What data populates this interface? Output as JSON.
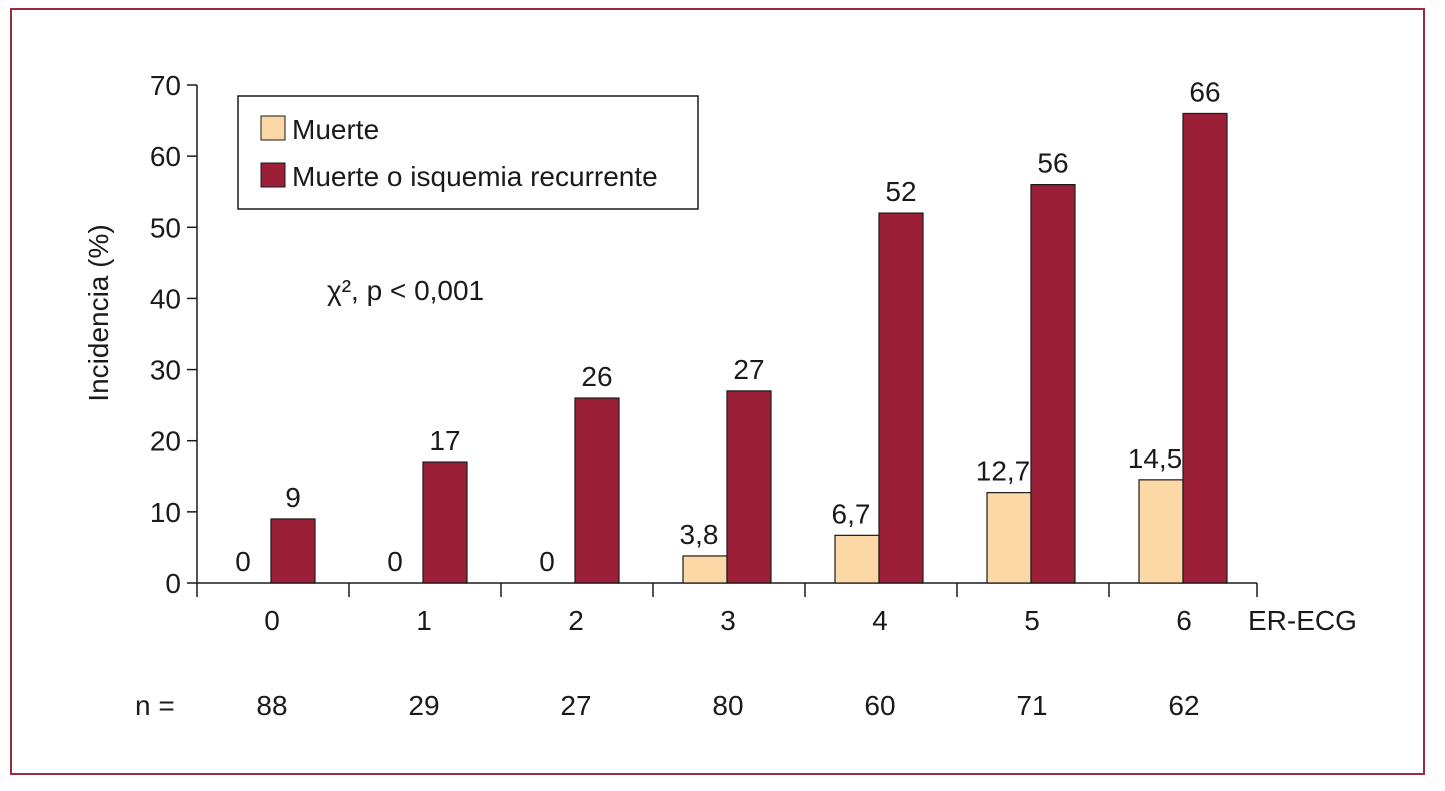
{
  "chart_data": {
    "type": "bar",
    "categories": [
      "0",
      "1",
      "2",
      "3",
      "4",
      "5",
      "6"
    ],
    "series": [
      {
        "name": "Muerte",
        "values": [
          0,
          0,
          0,
          3.8,
          6.7,
          12.7,
          14.5
        ],
        "labels": [
          "0",
          "0",
          "0",
          "3,8",
          "6,7",
          "12,7",
          "14,5"
        ],
        "color": "#fbd8a6"
      },
      {
        "name": "Muerte o isquemia recurrente",
        "values": [
          9,
          17,
          26,
          27,
          52,
          56,
          66
        ],
        "labels": [
          "9",
          "17",
          "26",
          "27",
          "52",
          "56",
          "66"
        ],
        "color": "#9b1f36"
      }
    ],
    "xlabel": "ER-ECG",
    "ylabel": "Incidencia (%)",
    "ylim": [
      0,
      70
    ],
    "yticks": [
      "0",
      "10",
      "20",
      "30",
      "40",
      "50",
      "60",
      "70"
    ],
    "n_label": "n =",
    "n_values": [
      "88",
      "29",
      "27",
      "80",
      "60",
      "71",
      "62"
    ],
    "annotation": "χ², p < 0,001",
    "legend_position": "top-left",
    "grid": false,
    "frame_color": "#9b2a3c"
  }
}
